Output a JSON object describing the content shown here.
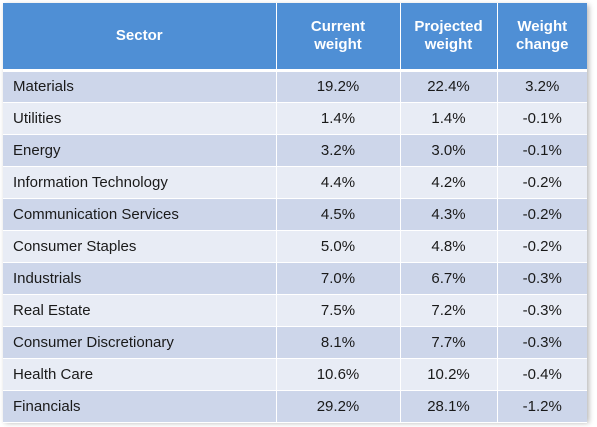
{
  "table": {
    "headers": {
      "sector": "Sector",
      "current_line1": "Current",
      "current_line2": "weight",
      "projected_line1": "Projected",
      "projected_line2": "weight",
      "change_line1": "Weight",
      "change_line2": "change"
    },
    "rows": [
      {
        "sector": "Materials",
        "current": "19.2%",
        "projected": "22.4%",
        "change": "3.2%"
      },
      {
        "sector": "Utilities",
        "current": "1.4%",
        "projected": "1.4%",
        "change": "-0.1%"
      },
      {
        "sector": "Energy",
        "current": "3.2%",
        "projected": "3.0%",
        "change": "-0.1%"
      },
      {
        "sector": "Information Technology",
        "current": "4.4%",
        "projected": "4.2%",
        "change": "-0.2%"
      },
      {
        "sector": "Communication Services",
        "current": "4.5%",
        "projected": "4.3%",
        "change": "-0.2%"
      },
      {
        "sector": "Consumer Staples",
        "current": "5.0%",
        "projected": "4.8%",
        "change": "-0.2%"
      },
      {
        "sector": "Industrials",
        "current": "7.0%",
        "projected": "6.7%",
        "change": "-0.3%"
      },
      {
        "sector": "Real Estate",
        "current": "7.5%",
        "projected": "7.2%",
        "change": "-0.3%"
      },
      {
        "sector": "Consumer Discretionary",
        "current": "8.1%",
        "projected": "7.7%",
        "change": "-0.3%"
      },
      {
        "sector": "Health Care",
        "current": "10.6%",
        "projected": "10.2%",
        "change": "-0.4%"
      },
      {
        "sector": "Financials",
        "current": "29.2%",
        "projected": "28.1%",
        "change": "-1.2%"
      }
    ]
  },
  "colors": {
    "header_bg": "#4F8FD5",
    "row_dark": "#CDD6EA",
    "row_light": "#E8ECF5"
  }
}
